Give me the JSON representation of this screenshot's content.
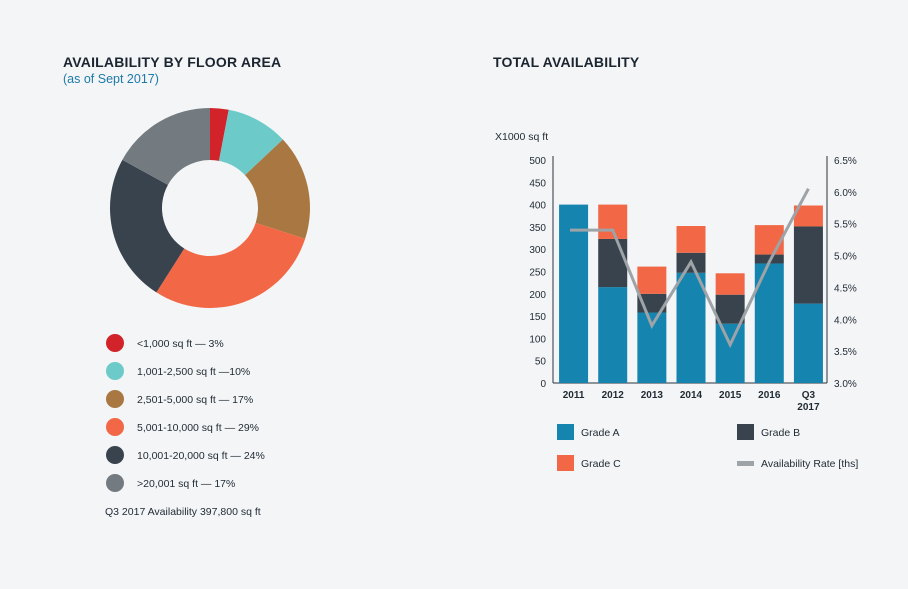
{
  "colors": {
    "red": "#d2232a",
    "teal": "#6ccbc9",
    "bronze": "#a97842",
    "coral": "#f26846",
    "slate": "#38434e",
    "gray": "#737b80",
    "gradeA": "#1584af",
    "gradeB": "#38434e",
    "gradeC": "#f26846",
    "rate": "#9da3a7"
  },
  "chart_data": [
    {
      "type": "pie",
      "title": "AVAILABILITY BY FLOOR AREA",
      "subtitle": "(as of Sept 2017)",
      "slices": [
        {
          "label": "<1,000 sq ft — 3%",
          "value": 3,
          "color": "#d2232a"
        },
        {
          "label": "1,001-2,500 sq ft —10%",
          "value": 10,
          "color": "#6ccbc9"
        },
        {
          "label": "2,501-5,000 sq ft — 17%",
          "value": 17,
          "color": "#a97842"
        },
        {
          "label": "5,001-10,000 sq ft — 29%",
          "value": 29,
          "color": "#f26846"
        },
        {
          "label": "10,001-20,000 sq ft — 24%",
          "value": 24,
          "color": "#38434e"
        },
        {
          "label": ">20,001 sq ft — 17%",
          "value": 17,
          "color": "#737b80"
        }
      ],
      "footnote": "Q3 2017 Availability 397,800 sq ft"
    },
    {
      "type": "bar",
      "stacked": true,
      "title": "TOTAL AVAILABILITY",
      "ylabel": "X1000 sq ft",
      "categories": [
        "2011",
        "2012",
        "2013",
        "2014",
        "2015",
        "2016",
        "Q3 2017"
      ],
      "ylim": [
        0,
        500
      ],
      "yticks": [
        "500",
        "450",
        "400",
        "350",
        "300",
        "250",
        "200",
        "150",
        "100",
        "50",
        "0"
      ],
      "series": [
        {
          "name": "Grade A",
          "color": "#1584af",
          "values": [
            400,
            215,
            158,
            247,
            133,
            268,
            178
          ]
        },
        {
          "name": "Grade B",
          "color": "#38434e",
          "values": [
            0,
            108,
            42,
            45,
            65,
            20,
            173
          ]
        },
        {
          "name": "Grade C",
          "color": "#f26846",
          "values": [
            0,
            77,
            61,
            60,
            48,
            66,
            47
          ]
        }
      ],
      "line": {
        "name": "Availability Rate [ths]",
        "color": "#9da3a7",
        "values": [
          5.4,
          5.4,
          3.9,
          4.9,
          3.6,
          4.9,
          6.05
        ]
      },
      "y2lim": [
        3.0,
        6.5
      ],
      "y2ticks": [
        "6.5%",
        "6.0%",
        "5.5%",
        "5.0%",
        "4.5%",
        "4.0%",
        "3.5%",
        "3.0%"
      ]
    }
  ]
}
